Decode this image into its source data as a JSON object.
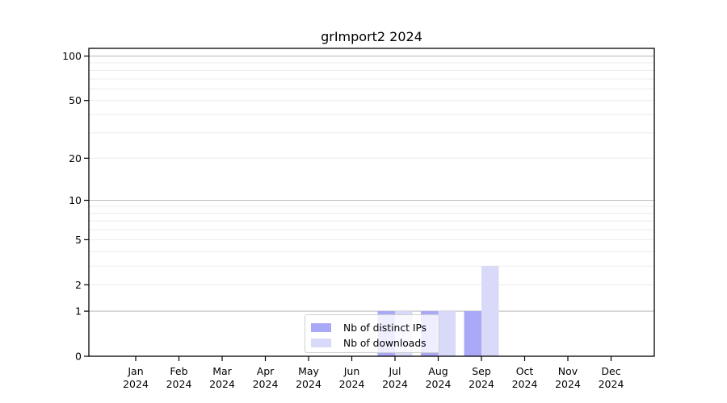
{
  "chart_data": {
    "type": "bar",
    "title": "grImport2 2024",
    "categories": [
      "Jan 2024",
      "Feb 2024",
      "Mar 2024",
      "Apr 2024",
      "May 2024",
      "Jun 2024",
      "Jul 2024",
      "Aug 2024",
      "Sep 2024",
      "Oct 2024",
      "Nov 2024",
      "Dec 2024"
    ],
    "series": [
      {
        "name": "Nb of distinct IPs",
        "color": "#a9a9f7",
        "values": [
          0,
          0,
          0,
          0,
          0,
          0,
          1,
          1,
          1,
          0,
          0,
          0
        ]
      },
      {
        "name": "Nb of downloads",
        "color": "#d9d9f9",
        "values": [
          0,
          0,
          0,
          0,
          0,
          0,
          1,
          1,
          3,
          0,
          0,
          0
        ]
      }
    ],
    "xlabel": "",
    "ylabel": "",
    "yscale": "log1p",
    "ylim": [
      0,
      113
    ],
    "yticks": [
      0,
      1,
      2,
      5,
      10,
      20,
      50,
      100
    ],
    "grid": {
      "major_lines": [
        1,
        10,
        100
      ],
      "minor_lines": [
        2,
        3,
        4,
        5,
        6,
        7,
        8,
        9,
        20,
        30,
        40,
        50,
        60,
        70,
        80,
        90
      ],
      "major_color": "#bdbdbd",
      "minor_color": "#ececec"
    },
    "legend_position": "lower center",
    "axis_color": "#000000",
    "background_color": "#ffffff"
  }
}
